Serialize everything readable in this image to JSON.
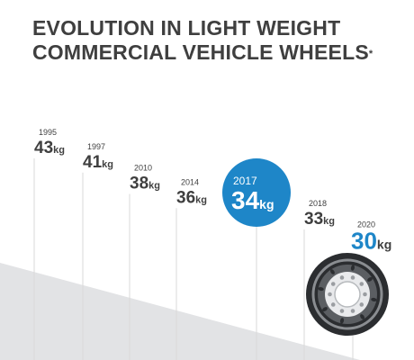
{
  "title": {
    "line1": "EVOLUTION IN LIGHT WEIGHT",
    "line2": "COMMERCIAL VEHICLE WHEELS",
    "mark": "*"
  },
  "colors": {
    "text": "#3f3f3f",
    "highlight": "#1e86c8",
    "triangle": "#e2e3e5",
    "gridline": "#d9d9d9",
    "wheel": "#2b2d30"
  },
  "icons": {
    "wheel": "wheel-icon"
  },
  "chart_data": {
    "type": "bar",
    "title": "EVOLUTION IN LIGHT WEIGHT COMMERCIAL VEHICLE WHEELS*",
    "unit": "kg",
    "categories": [
      "1995",
      "1997",
      "2010",
      "2014",
      "2017",
      "2018",
      "2020"
    ],
    "values": [
      43,
      41,
      38,
      36,
      34,
      33,
      30
    ],
    "highlighted_categories": [
      "2017",
      "2020"
    ],
    "grid": true
  }
}
